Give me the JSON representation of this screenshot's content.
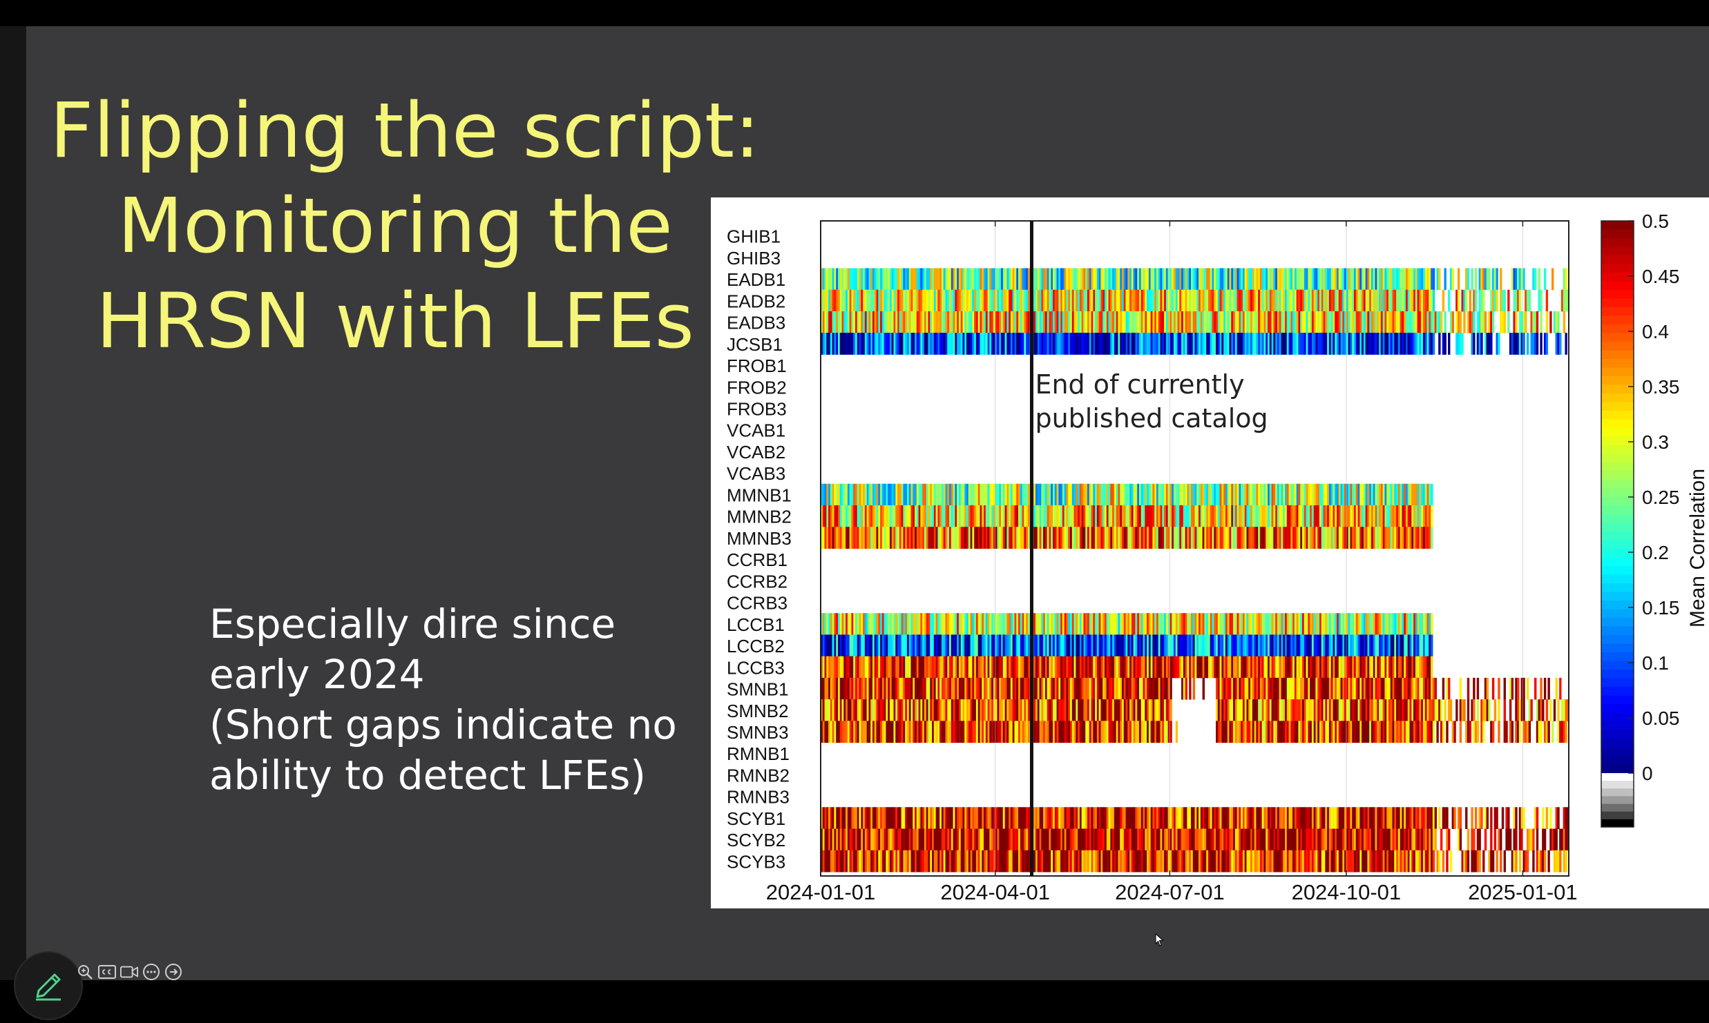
{
  "slide": {
    "title_lines": [
      "Flipping the script:",
      "Monitoring the",
      "HRSN with LFEs"
    ],
    "body_lines": [
      "Especially dire since",
      "early 2024",
      "(Short gaps indicate no",
      "ability to detect LFEs)"
    ],
    "title_color": "#f5f57a",
    "body_color": "#ffffff",
    "background": "#3a3a3c"
  },
  "chart_data": {
    "type": "heatmap",
    "stations": [
      "GHIB1",
      "GHIB3",
      "EADB1",
      "EADB2",
      "EADB3",
      "JCSB1",
      "FROB1",
      "FROB2",
      "FROB3",
      "VCAB1",
      "VCAB2",
      "VCAB3",
      "MMNB1",
      "MMNB2",
      "MMNB3",
      "CCRB1",
      "CCRB2",
      "CCRB3",
      "LCCB1",
      "LCCB2",
      "LCCB3",
      "SMNB1",
      "SMNB2",
      "SMNB3",
      "RMNB1",
      "RMNB2",
      "RMNB3",
      "SCYB1",
      "SCYB2",
      "SCYB3"
    ],
    "x_ticks": [
      "2024-01-01",
      "2024-04-01",
      "2024-07-01",
      "2024-10-01",
      "2025-01-01"
    ],
    "xlim": [
      "2024-01-01",
      "2025-01-25"
    ],
    "marker_date": "2024-04-20",
    "annotation": [
      "End of currently",
      "published catalog"
    ],
    "colorbar": {
      "label": "Mean Correlation",
      "ticks": [
        "0.5",
        "0.45",
        "0.4",
        "0.35",
        "0.3",
        "0.25",
        "0.2",
        "0.15",
        "0.1",
        "0.05",
        "0"
      ],
      "range": [
        0,
        0.5
      ],
      "colormap": "jet",
      "negative": "grayscale"
    },
    "row_summary": [
      {
        "station": "EADB1",
        "typical": 0.24,
        "end": "2025-01-25"
      },
      {
        "station": "EADB2",
        "typical": 0.31,
        "end": "2025-01-25"
      },
      {
        "station": "EADB3",
        "typical": 0.32,
        "end": "2025-01-25"
      },
      {
        "station": "JCSB1",
        "typical": 0.08,
        "end": "2025-01-25"
      },
      {
        "station": "MMNB1",
        "typical": 0.26,
        "end": "2024-11-15"
      },
      {
        "station": "MMNB2",
        "typical": 0.33,
        "end": "2024-11-15"
      },
      {
        "station": "MMNB3",
        "typical": 0.38,
        "end": "2024-11-15"
      },
      {
        "station": "LCCB1",
        "typical": 0.3,
        "end": "2024-11-15"
      },
      {
        "station": "LCCB2",
        "typical": 0.1,
        "end": "2024-11-15"
      },
      {
        "station": "LCCB3",
        "typical": 0.42,
        "end": "2024-11-15"
      },
      {
        "station": "SMNB1",
        "typical": 0.43,
        "end": "2025-01-25"
      },
      {
        "station": "SMNB2",
        "typical": 0.41,
        "end": "2025-01-25"
      },
      {
        "station": "SMNB3",
        "typical": 0.42,
        "end": "2025-01-25"
      },
      {
        "station": "SCYB1",
        "typical": 0.44,
        "end": "2025-01-25"
      },
      {
        "station": "SCYB2",
        "typical": 0.46,
        "end": "2025-01-25"
      },
      {
        "station": "SCYB3",
        "typical": 0.45,
        "end": "2025-01-25"
      }
    ]
  },
  "controls": {
    "icons": [
      "zoom-icon",
      "closed-caption-icon",
      "video-camera-icon",
      "more-options-icon",
      "next-arrow-icon"
    ],
    "edit_icon": "pencil-icon"
  }
}
